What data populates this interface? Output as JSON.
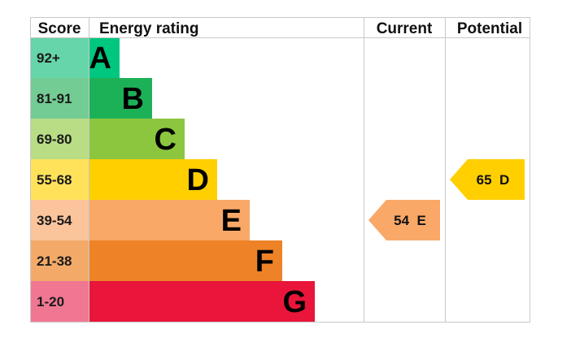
{
  "chart_data": {
    "type": "bar",
    "headers": {
      "score": "Score",
      "rating": "Energy rating",
      "current": "Current",
      "potential": "Potential"
    },
    "bands": [
      {
        "letter": "A",
        "range": "92+",
        "color": "#00c780",
        "score_bg": "#66d5a9"
      },
      {
        "letter": "B",
        "range": "81-91",
        "color": "#1db157",
        "score_bg": "#73cc93"
      },
      {
        "letter": "C",
        "range": "69-80",
        "color": "#8cc63f",
        "score_bg": "#b8dd85"
      },
      {
        "letter": "D",
        "range": "55-68",
        "color": "#ffcf00",
        "score_bg": "#ffe25a"
      },
      {
        "letter": "E",
        "range": "39-54",
        "color": "#f9a868",
        "score_bg": "#fbc49b"
      },
      {
        "letter": "F",
        "range": "21-38",
        "color": "#ed8227",
        "score_bg": "#f3aa69"
      },
      {
        "letter": "G",
        "range": "1-20",
        "color": "#e9153b",
        "score_bg": "#f07792"
      }
    ],
    "current": {
      "value": 54,
      "band": "E",
      "label": "54  E",
      "color": "#f9a868"
    },
    "potential": {
      "value": 65,
      "band": "D",
      "label": "65  D",
      "color": "#ffcf00"
    }
  }
}
